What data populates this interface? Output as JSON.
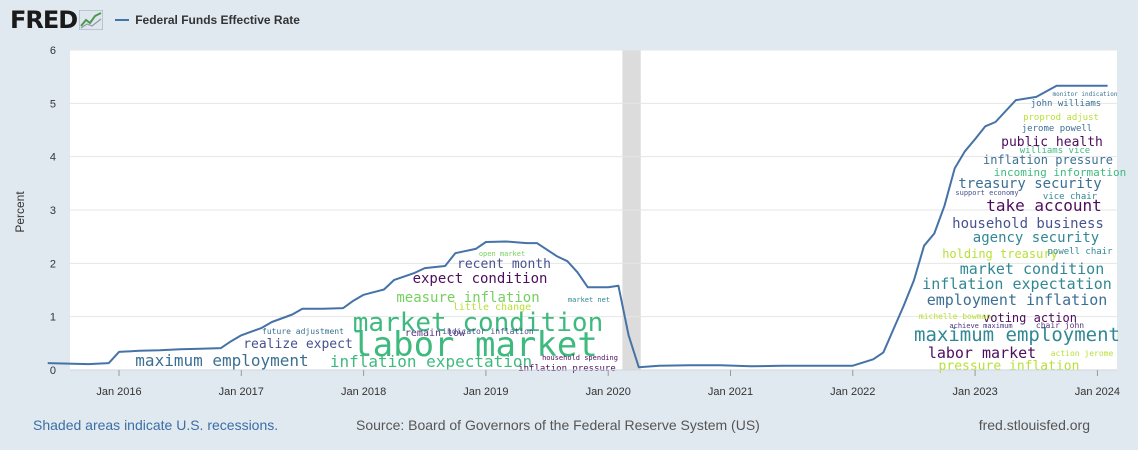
{
  "header": {
    "logo_text": "FRED",
    "logo_icon": "chart-trend-icon",
    "legend_label": "Federal Funds Effective Rate",
    "legend_color": "#4572a7"
  },
  "chart_data": {
    "type": "line",
    "title": "",
    "xlabel": "",
    "ylabel": "Percent",
    "ylim": [
      0,
      6
    ],
    "yticks": [
      "0",
      "1",
      "2",
      "3",
      "4",
      "5",
      "6"
    ],
    "xticks": [
      "Jan 2016",
      "Jan 2017",
      "Jan 2018",
      "Jan 2019",
      "Jan 2020",
      "Jan 2021",
      "Jan 2022",
      "Jan 2023",
      "Jan 2024"
    ],
    "grid": true,
    "recession_shading": [
      "2020-02",
      "2020-04"
    ],
    "series": [
      {
        "name": "Federal Funds Effective Rate",
        "color": "#4572a7",
        "x": [
          "2015-06",
          "2015-08",
          "2015-10",
          "2015-12",
          "2016-01",
          "2016-03",
          "2016-05",
          "2016-07",
          "2016-09",
          "2016-11",
          "2016-12",
          "2017-01",
          "2017-03",
          "2017-04",
          "2017-06",
          "2017-07",
          "2017-09",
          "2017-11",
          "2017-12",
          "2018-01",
          "2018-03",
          "2018-04",
          "2018-06",
          "2018-07",
          "2018-09",
          "2018-10",
          "2018-12",
          "2019-01",
          "2019-03",
          "2019-05",
          "2019-06",
          "2019-08",
          "2019-09",
          "2019-10",
          "2019-11",
          "2019-12",
          "2020-01",
          "2020-02",
          "2020-03",
          "2020-04",
          "2020-06",
          "2020-09",
          "2020-12",
          "2021-03",
          "2021-06",
          "2021-09",
          "2021-12",
          "2022-01",
          "2022-03",
          "2022-04",
          "2022-05",
          "2022-06",
          "2022-07",
          "2022-08",
          "2022-09",
          "2022-10",
          "2022-11",
          "2022-12",
          "2023-01",
          "2023-02",
          "2023-03",
          "2023-05",
          "2023-07",
          "2023-09",
          "2023-12",
          "2024-02"
        ],
        "values": [
          0.13,
          0.12,
          0.11,
          0.13,
          0.34,
          0.36,
          0.37,
          0.39,
          0.4,
          0.41,
          0.54,
          0.65,
          0.79,
          0.9,
          1.04,
          1.15,
          1.15,
          1.16,
          1.3,
          1.41,
          1.51,
          1.69,
          1.82,
          1.91,
          1.95,
          2.19,
          2.27,
          2.4,
          2.41,
          2.38,
          2.38,
          2.13,
          2.04,
          1.83,
          1.55,
          1.55,
          1.55,
          1.58,
          0.65,
          0.05,
          0.08,
          0.09,
          0.09,
          0.07,
          0.08,
          0.08,
          0.08,
          0.08,
          0.2,
          0.33,
          0.77,
          1.21,
          1.68,
          2.33,
          2.56,
          3.08,
          3.78,
          4.1,
          4.33,
          4.57,
          4.65,
          5.06,
          5.12,
          5.33,
          5.33,
          5.33
        ]
      }
    ]
  },
  "word_cloud": [
    {
      "text": "labor market",
      "color": "#35b779",
      "size": 34
    },
    {
      "text": "market condition",
      "color": "#35b779",
      "size": 26
    },
    {
      "text": "maximum employment",
      "color": "#31688e",
      "size": 16
    },
    {
      "text": "inflation expectation",
      "color": "#35b779",
      "size": 16
    },
    {
      "text": "expect condition",
      "color": "#440154",
      "size": 14
    },
    {
      "text": "measure inflation",
      "color": "#6ece58",
      "size": 14
    },
    {
      "text": "recent month",
      "color": "#3e4989",
      "size": 13
    },
    {
      "text": "realize expect",
      "color": "#3e4989",
      "size": 13
    },
    {
      "text": "remain low",
      "color": "#482878",
      "size": 10
    },
    {
      "text": "little change",
      "color": "#b5de2b",
      "size": 10
    },
    {
      "text": "inflation pressure",
      "color": "#440154",
      "size": 9
    },
    {
      "text": "future adjustment",
      "color": "#31688e",
      "size": 8
    },
    {
      "text": "indicator inflation",
      "color": "#3e4989",
      "size": 8
    },
    {
      "text": "market net",
      "color": "#26828e",
      "size": 7
    },
    {
      "text": "open market",
      "color": "#6ece58",
      "size": 7
    },
    {
      "text": "household spending",
      "color": "#440154",
      "size": 7
    },
    {
      "text": "maximum employment",
      "color": "#26828e",
      "size": 19
    },
    {
      "text": "employment inflation",
      "color": "#31688e",
      "size": 15
    },
    {
      "text": "inflation expectation",
      "color": "#26828e",
      "size": 15
    },
    {
      "text": "market condition",
      "color": "#26828e",
      "size": 15
    },
    {
      "text": "labor market",
      "color": "#440154",
      "size": 15
    },
    {
      "text": "take account",
      "color": "#440154",
      "size": 16
    },
    {
      "text": "household business",
      "color": "#3e4989",
      "size": 14
    },
    {
      "text": "agency security",
      "color": "#26828e",
      "size": 14
    },
    {
      "text": "treasury security",
      "color": "#31688e",
      "size": 14
    },
    {
      "text": "holding treasury",
      "color": "#b5de2b",
      "size": 12
    },
    {
      "text": "public health",
      "color": "#440154",
      "size": 13
    },
    {
      "text": "inflation pressure",
      "color": "#31688e",
      "size": 12
    },
    {
      "text": "incoming information",
      "color": "#35b779",
      "size": 11
    },
    {
      "text": "pressure inflation",
      "color": "#b5de2b",
      "size": 13
    },
    {
      "text": "voting action",
      "color": "#440154",
      "size": 12
    },
    {
      "text": "john williams",
      "color": "#31688e",
      "size": 9
    },
    {
      "text": "jerome powell",
      "color": "#31688e",
      "size": 9
    },
    {
      "text": "williams vice",
      "color": "#35b779",
      "size": 9
    },
    {
      "text": "vice chair",
      "color": "#26828e",
      "size": 9
    },
    {
      "text": "powell chair",
      "color": "#26828e",
      "size": 9
    },
    {
      "text": "michelle bowman",
      "color": "#b5de2b",
      "size": 8
    },
    {
      "text": "action jerome",
      "color": "#b5de2b",
      "size": 8
    },
    {
      "text": "chair john",
      "color": "#482878",
      "size": 8
    },
    {
      "text": "achieve maximum",
      "color": "#482878",
      "size": 7
    },
    {
      "text": "support economy",
      "color": "#3e4989",
      "size": 7
    },
    {
      "text": "proprod adjust",
      "color": "#b5de2b",
      "size": 9
    },
    {
      "text": "monitor indication",
      "color": "#31688e",
      "size": 6
    }
  ],
  "footer": {
    "recession_note": "Shaded areas indicate U.S. recessions.",
    "source": "Source: Board of Governors of the Federal Reserve System (US)",
    "site": "fred.stlouisfed.org"
  }
}
